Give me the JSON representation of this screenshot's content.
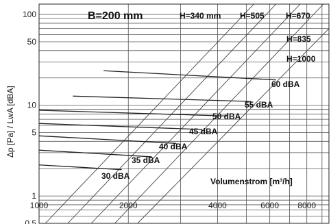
{
  "chart_data": {
    "type": "line",
    "title": "B=200 mm",
    "xlabel": "Volumenstrom [m³/h]",
    "ylabel": "Δp [Pa] / LwA [dBA]",
    "x_scale": "log",
    "y_scale": "log",
    "xlim": [
      1000,
      9500
    ],
    "ylim": [
      0.5,
      130
    ],
    "x_ticks": [
      {
        "value": 1000,
        "label": "1000"
      },
      {
        "value": 2000,
        "label": "2000"
      },
      {
        "value": 4000,
        "label": "4000"
      },
      {
        "value": 6000,
        "label": "6000"
      },
      {
        "value": 8000,
        "label": "8000"
      }
    ],
    "y_ticks": [
      {
        "value": 100,
        "label": "100"
      },
      {
        "value": 50,
        "label": "50"
      },
      {
        "value": 10,
        "label": "10"
      },
      {
        "value": 5,
        "label": "5"
      },
      {
        "value": 1,
        "label": "1"
      },
      {
        "value": 0.5,
        "label": "0,5"
      }
    ],
    "grid": true,
    "height_series": [
      {
        "name": "H=340 mm",
        "x": [
          1050,
          5300
        ],
        "y": [
          0.5,
          130
        ]
      },
      {
        "name": "H=505",
        "x": [
          1250,
          6300
        ],
        "y": [
          0.5,
          130
        ]
      },
      {
        "name": "H=670",
        "x": [
          1500,
          7600
        ],
        "y": [
          0.5,
          130
        ]
      },
      {
        "name": "H=835",
        "x": [
          1800,
          9100
        ],
        "y": [
          0.5,
          130
        ]
      },
      {
        "name": "H=1000",
        "x": [
          2150,
          9500
        ],
        "y": [
          0.5,
          70
        ]
      }
    ],
    "dba_series": [
      {
        "name": "30 dBA",
        "x": [
          1000,
          1900
        ],
        "y": [
          2.2,
          1.95
        ]
      },
      {
        "name": "35 dBA",
        "x": [
          1000,
          2400
        ],
        "y": [
          3.2,
          2.7
        ]
      },
      {
        "name": "40 dBA",
        "x": [
          1000,
          2900
        ],
        "y": [
          4.6,
          3.8
        ]
      },
      {
        "name": "45 dBA",
        "x": [
          1000,
          3550
        ],
        "y": [
          6.3,
          5.4
        ]
      },
      {
        "name": "50 dBA",
        "x": [
          1000,
          4300
        ],
        "y": [
          8.8,
          7.6
        ]
      },
      {
        "name": "55 dBA",
        "x": [
          1300,
          5200
        ],
        "y": [
          12.6,
          11.0
        ]
      },
      {
        "name": "60 dBA",
        "x": [
          1650,
          6300
        ],
        "y": [
          24.0,
          19.0
        ]
      }
    ],
    "dba_labels": [
      "30 dBA",
      "35 dBA",
      "40 dBA",
      "45 dBA",
      "50 dBA",
      "55 dBA",
      "60 dBA"
    ],
    "height_labels": [
      "H=340 mm",
      "H=505",
      "H=670",
      "H=835",
      "H=1000"
    ]
  }
}
